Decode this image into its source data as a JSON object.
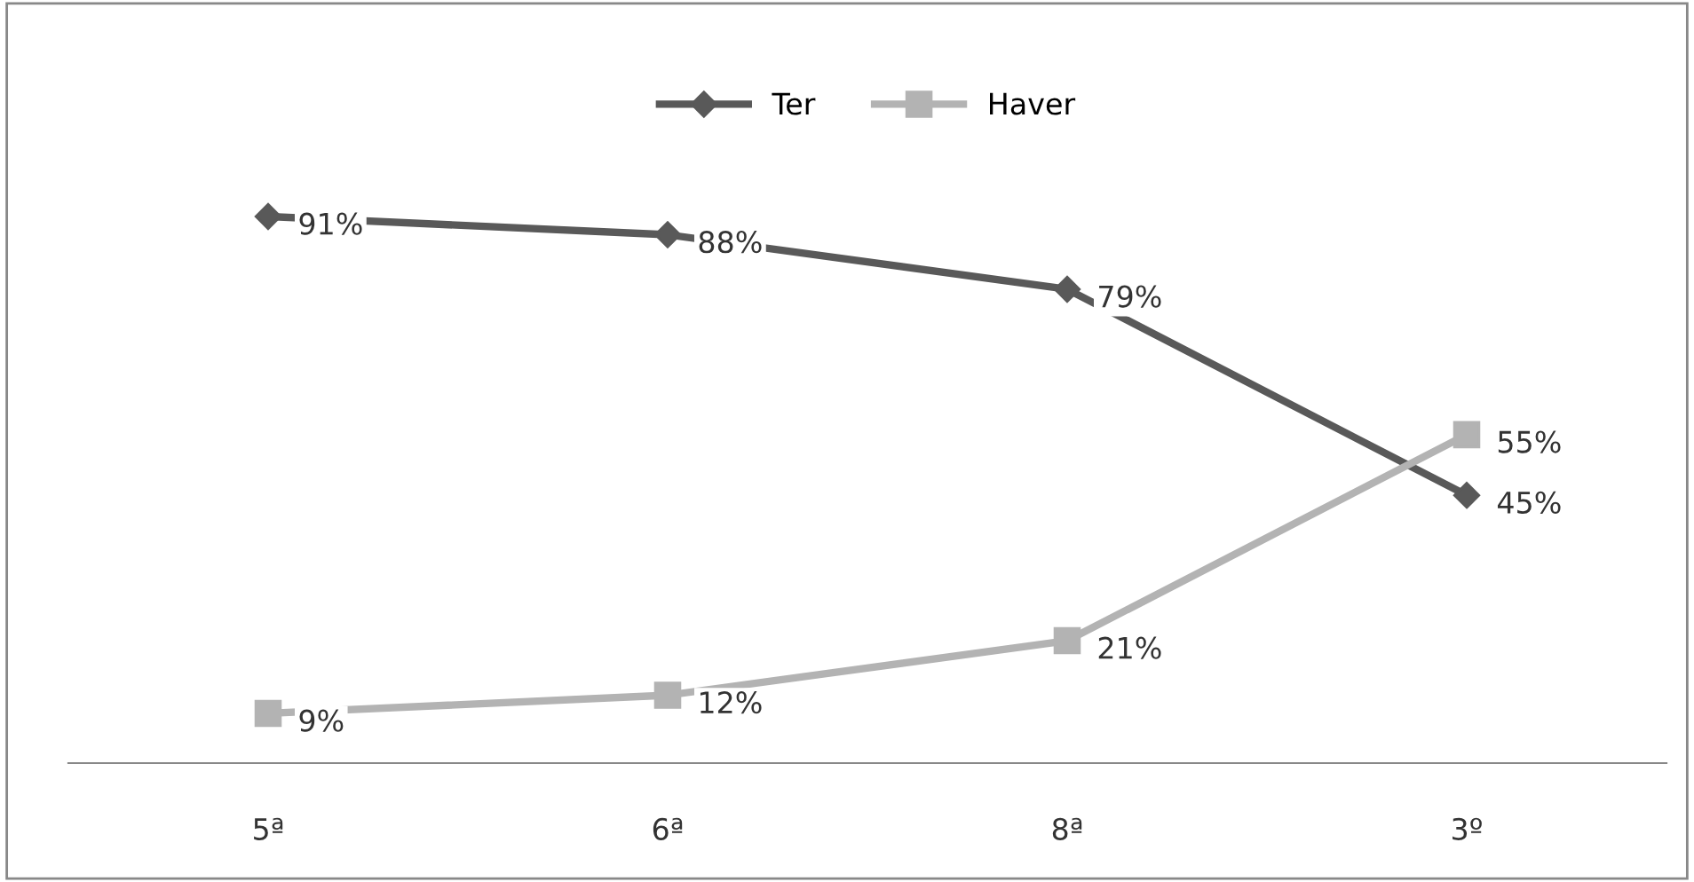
{
  "chart_data": {
    "type": "line",
    "categories": [
      "5ª",
      "6ª",
      "8ª",
      "3º"
    ],
    "series": [
      {
        "name": "Ter",
        "color": "#595959",
        "marker": "diamond",
        "values": [
          91,
          88,
          79,
          45
        ],
        "value_labels": [
          "91%",
          "88%",
          "79%",
          "45%"
        ]
      },
      {
        "name": "Haver",
        "color": "#b3b3b3",
        "marker": "square",
        "values": [
          9,
          12,
          21,
          55
        ],
        "value_labels": [
          "9%",
          "12%",
          "21%",
          "55%"
        ]
      }
    ],
    "tick_labels": "x",
    "legend": "top",
    "grid": false,
    "line_style": "solid"
  }
}
